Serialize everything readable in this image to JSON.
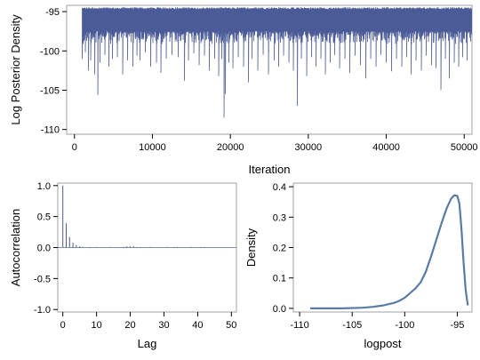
{
  "colors": {
    "series": "#4a5b97",
    "density": "#5a7ba3",
    "reference": "#7f8fb4",
    "frame": "#a0a0a0",
    "axis_text": "#000000"
  },
  "chart_data": [
    {
      "id": "trace",
      "type": "line",
      "xlabel": "Iteration",
      "ylabel": "Log Posterior Density",
      "xlim": [
        -1000,
        51000
      ],
      "ylim": [
        -110.6,
        -94.2
      ],
      "xticks": [
        0,
        10000,
        20000,
        30000,
        40000,
        50000
      ],
      "xtick_labels": [
        "0",
        "10000",
        "20000",
        "30000",
        "40000",
        "50000"
      ],
      "yticks": [
        -95,
        -100,
        -105,
        -110
      ],
      "ytick_labels": [
        "-95",
        "-100",
        "-105",
        "-110"
      ],
      "grid": false,
      "series": [
        {
          "x_start": 1000,
          "x_end": 51000,
          "band": {
            "upper": -94.6,
            "typical_lower": -97.5
          },
          "dips": [
            {
              "x": 1000,
              "y": -101.0
            },
            {
              "x": 1400,
              "y": -100.2
            },
            {
              "x": 1800,
              "y": -102.5
            },
            {
              "x": 2100,
              "y": -101.2
            },
            {
              "x": 2600,
              "y": -103.0
            },
            {
              "x": 3000,
              "y": -105.6
            },
            {
              "x": 3300,
              "y": -101.5
            },
            {
              "x": 3900,
              "y": -100.5
            },
            {
              "x": 4400,
              "y": -102.0
            },
            {
              "x": 4900,
              "y": -101.0
            },
            {
              "x": 5500,
              "y": -100.8
            },
            {
              "x": 6200,
              "y": -103.0
            },
            {
              "x": 6800,
              "y": -101.2
            },
            {
              "x": 7500,
              "y": -102.0
            },
            {
              "x": 8000,
              "y": -100.6
            },
            {
              "x": 8400,
              "y": -101.2
            },
            {
              "x": 9100,
              "y": -100.2
            },
            {
              "x": 9800,
              "y": -102.0
            },
            {
              "x": 10500,
              "y": -101.5
            },
            {
              "x": 11100,
              "y": -102.8
            },
            {
              "x": 11800,
              "y": -101.0
            },
            {
              "x": 12500,
              "y": -100.5
            },
            {
              "x": 13300,
              "y": -100.8
            },
            {
              "x": 14100,
              "y": -103.8
            },
            {
              "x": 14600,
              "y": -101.2
            },
            {
              "x": 15300,
              "y": -100.3
            },
            {
              "x": 16000,
              "y": -101.8
            },
            {
              "x": 16700,
              "y": -100.6
            },
            {
              "x": 17300,
              "y": -102.5
            },
            {
              "x": 18000,
              "y": -101.0
            },
            {
              "x": 18500,
              "y": -103.2
            },
            {
              "x": 18900,
              "y": -101.0
            },
            {
              "x": 19200,
              "y": -108.5
            },
            {
              "x": 19350,
              "y": -105.5
            },
            {
              "x": 19800,
              "y": -101.5
            },
            {
              "x": 20300,
              "y": -102.2
            },
            {
              "x": 21000,
              "y": -100.8
            },
            {
              "x": 21700,
              "y": -102.0
            },
            {
              "x": 22300,
              "y": -104.0
            },
            {
              "x": 22800,
              "y": -101.0
            },
            {
              "x": 23500,
              "y": -102.5
            },
            {
              "x": 24200,
              "y": -100.5
            },
            {
              "x": 24900,
              "y": -103.0
            },
            {
              "x": 25600,
              "y": -101.2
            },
            {
              "x": 26200,
              "y": -102.0
            },
            {
              "x": 26800,
              "y": -100.6
            },
            {
              "x": 27500,
              "y": -101.5
            },
            {
              "x": 28100,
              "y": -102.5
            },
            {
              "x": 28600,
              "y": -107.0
            },
            {
              "x": 29100,
              "y": -101.0
            },
            {
              "x": 29800,
              "y": -103.2
            },
            {
              "x": 30400,
              "y": -100.8
            },
            {
              "x": 31000,
              "y": -102.0
            },
            {
              "x": 31600,
              "y": -101.0
            },
            {
              "x": 32200,
              "y": -103.0
            },
            {
              "x": 32800,
              "y": -101.5
            },
            {
              "x": 33400,
              "y": -100.5
            },
            {
              "x": 34000,
              "y": -102.2
            },
            {
              "x": 34700,
              "y": -101.0
            },
            {
              "x": 35300,
              "y": -102.8
            },
            {
              "x": 36000,
              "y": -100.6
            },
            {
              "x": 36700,
              "y": -101.8
            },
            {
              "x": 37400,
              "y": -103.5
            },
            {
              "x": 38000,
              "y": -101.0
            },
            {
              "x": 38700,
              "y": -102.0
            },
            {
              "x": 39300,
              "y": -100.5
            },
            {
              "x": 40000,
              "y": -101.5
            },
            {
              "x": 40700,
              "y": -102.6
            },
            {
              "x": 41300,
              "y": -101.0
            },
            {
              "x": 42000,
              "y": -102.0
            },
            {
              "x": 42600,
              "y": -100.8
            },
            {
              "x": 43200,
              "y": -103.0
            },
            {
              "x": 43800,
              "y": -101.2
            },
            {
              "x": 44500,
              "y": -102.5
            },
            {
              "x": 45100,
              "y": -100.6
            },
            {
              "x": 45800,
              "y": -101.8
            },
            {
              "x": 46400,
              "y": -102.2
            },
            {
              "x": 47000,
              "y": -105.0
            },
            {
              "x": 47600,
              "y": -101.0
            },
            {
              "x": 48100,
              "y": -103.5
            },
            {
              "x": 48700,
              "y": -101.5
            },
            {
              "x": 49300,
              "y": -102.0
            },
            {
              "x": 49800,
              "y": -100.8
            },
            {
              "x": 50400,
              "y": -101.2
            }
          ]
        }
      ]
    },
    {
      "id": "acf",
      "type": "bar",
      "xlabel": "Lag",
      "ylabel": "Autocorrelation",
      "xlim": [
        -1.5,
        51.5
      ],
      "ylim": [
        -1.04,
        1.04
      ],
      "xticks": [
        0,
        10,
        20,
        30,
        40,
        50
      ],
      "xtick_labels": [
        "0",
        "10",
        "20",
        "30",
        "40",
        "50"
      ],
      "yticks": [
        1.0,
        0.5,
        0.0,
        -0.5,
        -1.0
      ],
      "ytick_labels": [
        "1.0",
        "0.5",
        "0.0",
        "-0.5",
        "-1.0"
      ],
      "reference_line_y": 0,
      "grid": false,
      "x": [
        0,
        1,
        2,
        3,
        4,
        5,
        6,
        7,
        8,
        9,
        10,
        11,
        12,
        13,
        14,
        15,
        16,
        17,
        18,
        19,
        20,
        21,
        22,
        23,
        24,
        25,
        26,
        27,
        28,
        29,
        30,
        31,
        32,
        33,
        34,
        35,
        36,
        37,
        38,
        39,
        40,
        41,
        42,
        43,
        44,
        45,
        46,
        47,
        48,
        49,
        50
      ],
      "values": [
        1.0,
        0.39,
        0.17,
        0.08,
        0.04,
        0.02,
        0.01,
        0.0,
        0.01,
        0.0,
        0.01,
        0.0,
        0.0,
        0.0,
        0.01,
        0.0,
        0.0,
        0.0,
        0.01,
        0.02,
        0.02,
        0.02,
        0.01,
        0.01,
        0.0,
        0.0,
        0.01,
        0.0,
        0.0,
        0.0,
        0.0,
        0.01,
        0.0,
        0.01,
        0.01,
        0.0,
        0.0,
        0.0,
        0.01,
        0.0,
        0.0,
        0.01,
        0.01,
        0.0,
        0.0,
        0.0,
        0.0,
        0.0,
        0.0,
        0.0,
        0.0
      ]
    },
    {
      "id": "density",
      "type": "line",
      "xlabel": "logpost",
      "ylabel": "Density",
      "xlim": [
        -110.6,
        -93.6
      ],
      "ylim": [
        -0.012,
        0.412
      ],
      "xticks": [
        -110,
        -105,
        -100,
        -95
      ],
      "xtick_labels": [
        "-110",
        "-105",
        "-100",
        "-95"
      ],
      "yticks": [
        0.4,
        0.3,
        0.2,
        0.1,
        0.0
      ],
      "ytick_labels": [
        "0.4",
        "0.3",
        "0.2",
        "0.1",
        "0.0"
      ],
      "grid": false,
      "series": [
        {
          "x": [
            -109.0,
            -106.0,
            -104.0,
            -103.0,
            -102.0,
            -101.0,
            -100.5,
            -100.0,
            -99.5,
            -99.0,
            -98.5,
            -98.0,
            -97.5,
            -97.0,
            -96.5,
            -96.0,
            -95.6,
            -95.3,
            -95.0,
            -94.8,
            -94.6,
            -94.4,
            -94.2,
            -94.0
          ],
          "y": [
            0.0,
            0.0,
            0.002,
            0.005,
            0.01,
            0.018,
            0.025,
            0.035,
            0.05,
            0.065,
            0.085,
            0.12,
            0.17,
            0.225,
            0.28,
            0.33,
            0.36,
            0.372,
            0.37,
            0.345,
            0.26,
            0.15,
            0.06,
            0.01
          ]
        }
      ]
    }
  ]
}
